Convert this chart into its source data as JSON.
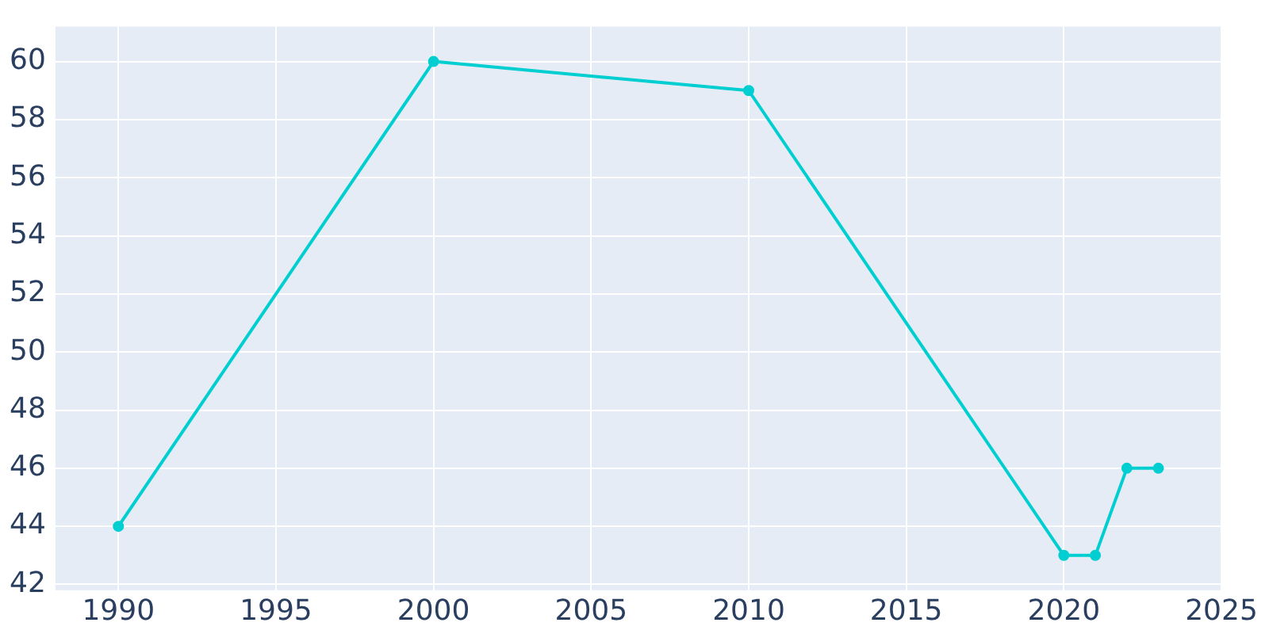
{
  "chart_data": {
    "type": "line",
    "x": [
      1990,
      2000,
      2010,
      2020,
      2021,
      2022,
      2023
    ],
    "series": [
      {
        "color": "#00ced1",
        "values": [
          44,
          60,
          59,
          43,
          43,
          46,
          46
        ]
      }
    ],
    "xlim": [
      1988,
      2025
    ],
    "xticks": [
      1990,
      1995,
      2000,
      2005,
      2010,
      2015,
      2020,
      2025
    ],
    "ylim": [
      41.8,
      61.2
    ],
    "yticks": [
      42,
      44,
      46,
      48,
      50,
      52,
      54,
      56,
      58,
      60
    ],
    "grid": true,
    "marker": "circle",
    "line_style": "solid",
    "legend": false
  }
}
